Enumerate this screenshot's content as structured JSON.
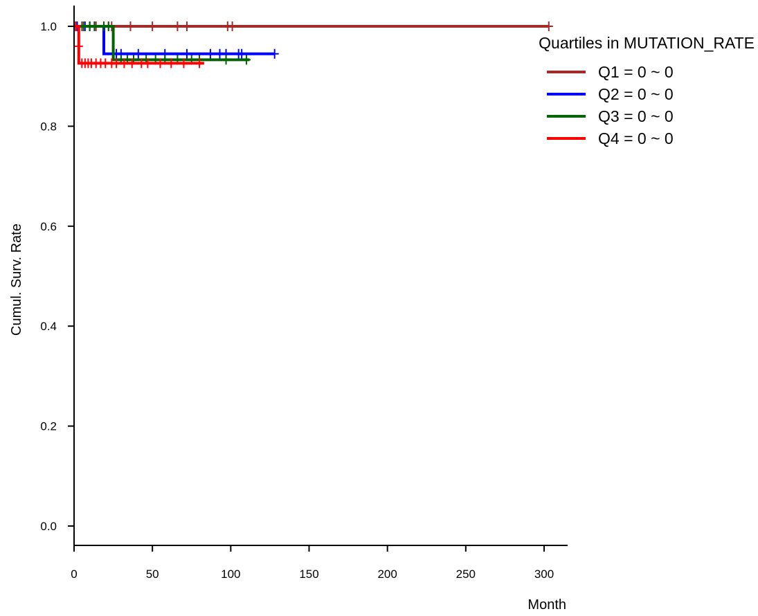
{
  "chart_data": {
    "type": "line",
    "step": true,
    "xlabel": "Month",
    "ylabel": "Cumul. Surv. Rate",
    "xlim": [
      0,
      315
    ],
    "ylim": [
      -0.04,
      1.04
    ],
    "x_ticks": [
      0,
      50,
      100,
      150,
      200,
      250,
      300
    ],
    "y_ticks": [
      0.0,
      0.2,
      0.4,
      0.6,
      0.8,
      1.0
    ],
    "y_tick_labels": [
      "0.0",
      "0.2",
      "0.4",
      "0.6",
      "0.8",
      "1.0"
    ],
    "legend": {
      "title": "Quartiles in MUTATION_RATE",
      "placement": "top-right"
    },
    "series": [
      {
        "name": "Q1 = 0 ~ 0",
        "color": "#A52A2A",
        "steps": [
          [
            0,
            1.0
          ],
          [
            303,
            1.0
          ]
        ],
        "censored": [
          [
            1,
            1.0
          ],
          [
            5,
            1.0
          ],
          [
            10,
            1.0
          ],
          [
            14,
            1.0
          ],
          [
            22,
            1.0
          ],
          [
            24,
            1.0
          ],
          [
            36,
            1.0
          ],
          [
            50,
            1.0
          ],
          [
            66,
            1.0
          ],
          [
            72,
            1.0
          ],
          [
            98,
            1.0
          ],
          [
            101,
            1.0
          ],
          [
            303,
            1.0
          ]
        ]
      },
      {
        "name": "Q2 = 0 ~ 0",
        "color": "#0000FF",
        "steps": [
          [
            0,
            1.0
          ],
          [
            19,
            1.0
          ],
          [
            19,
            0.945
          ],
          [
            128,
            0.945
          ]
        ],
        "censored": [
          [
            2,
            1.0
          ],
          [
            7,
            1.0
          ],
          [
            10,
            1.0
          ],
          [
            13,
            1.0
          ],
          [
            27,
            0.945
          ],
          [
            30,
            0.945
          ],
          [
            41,
            0.945
          ],
          [
            58,
            0.945
          ],
          [
            72,
            0.945
          ],
          [
            87,
            0.945
          ],
          [
            93,
            0.945
          ],
          [
            97,
            0.945
          ],
          [
            105,
            0.945
          ],
          [
            107,
            0.945
          ],
          [
            128,
            0.945
          ]
        ]
      },
      {
        "name": "Q3 = 0 ~ 0",
        "color": "#006400",
        "steps": [
          [
            0,
            1.0
          ],
          [
            25,
            1.0
          ],
          [
            25,
            0.933
          ],
          [
            112,
            0.933
          ]
        ],
        "censored": [
          [
            6,
            1.0
          ],
          [
            10,
            1.0
          ],
          [
            13,
            1.0
          ],
          [
            19,
            1.0
          ],
          [
            22,
            1.0
          ],
          [
            30,
            0.933
          ],
          [
            34,
            0.933
          ],
          [
            38,
            0.933
          ],
          [
            46,
            0.933
          ],
          [
            52,
            0.933
          ],
          [
            58,
            0.933
          ],
          [
            66,
            0.933
          ],
          [
            75,
            0.933
          ],
          [
            80,
            0.933
          ],
          [
            97,
            0.933
          ],
          [
            110,
            0.933
          ]
        ]
      },
      {
        "name": "Q4 = 0 ~ 0",
        "color": "#FF0000",
        "steps": [
          [
            0,
            1.0
          ],
          [
            3,
            1.0
          ],
          [
            3,
            0.926
          ],
          [
            83,
            0.926
          ]
        ],
        "censored": [
          [
            1,
            1.0
          ],
          [
            3,
            0.96
          ],
          [
            5,
            0.926
          ],
          [
            7,
            0.926
          ],
          [
            9,
            0.926
          ],
          [
            11,
            0.926
          ],
          [
            14,
            0.926
          ],
          [
            17,
            0.926
          ],
          [
            20,
            0.926
          ],
          [
            24,
            0.926
          ],
          [
            27,
            0.926
          ],
          [
            32,
            0.926
          ],
          [
            37,
            0.926
          ],
          [
            43,
            0.926
          ],
          [
            47,
            0.926
          ],
          [
            55,
            0.926
          ],
          [
            62,
            0.926
          ],
          [
            70,
            0.926
          ],
          [
            80,
            0.926
          ]
        ]
      }
    ]
  }
}
